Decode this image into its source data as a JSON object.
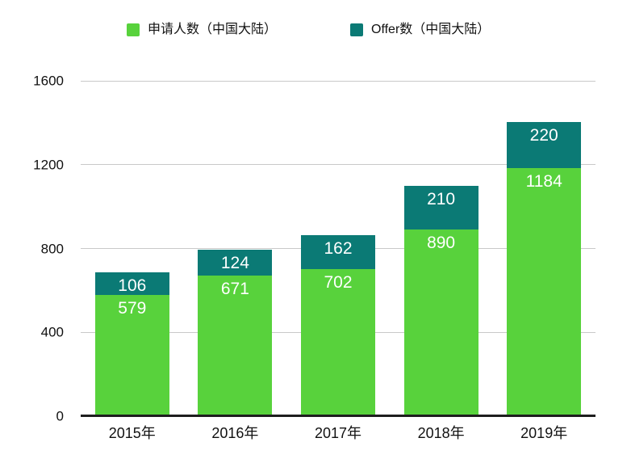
{
  "legend": [
    {
      "label": "申请人数（中国大陆）",
      "color": "#58D23C"
    },
    {
      "label": "Offer数（中国大陆）",
      "color": "#0B7A75"
    }
  ],
  "chart_data": {
    "type": "bar",
    "stacked": true,
    "title": "",
    "xlabel": "",
    "ylabel": "",
    "categories": [
      "2015年",
      "2016年",
      "2017年",
      "2018年",
      "2019年"
    ],
    "series": [
      {
        "key": "applicants",
        "name": "申请人数（中国大陆）",
        "color": "#58D23C",
        "values": [
          579,
          671,
          702,
          890,
          1184
        ]
      },
      {
        "key": "offers",
        "name": "Offer数（中国大陆）",
        "color": "#0B7A75",
        "values": [
          106,
          124,
          162,
          210,
          220
        ]
      }
    ],
    "totals": [
      685,
      795,
      864,
      1100,
      1404
    ],
    "ylim": [
      0,
      1600
    ],
    "yticks": [
      0,
      400,
      800,
      1200,
      1600
    ],
    "grid": true,
    "legend_position": "top",
    "value_labels": "inside-top",
    "value_label_color": "#FFFFFF"
  },
  "colors": {
    "background": "#FFFFFF",
    "gridline": "#C9C9C9",
    "axis_line": "#1E1E1E",
    "tick_text": "#111111",
    "legend_text": "#111111"
  }
}
